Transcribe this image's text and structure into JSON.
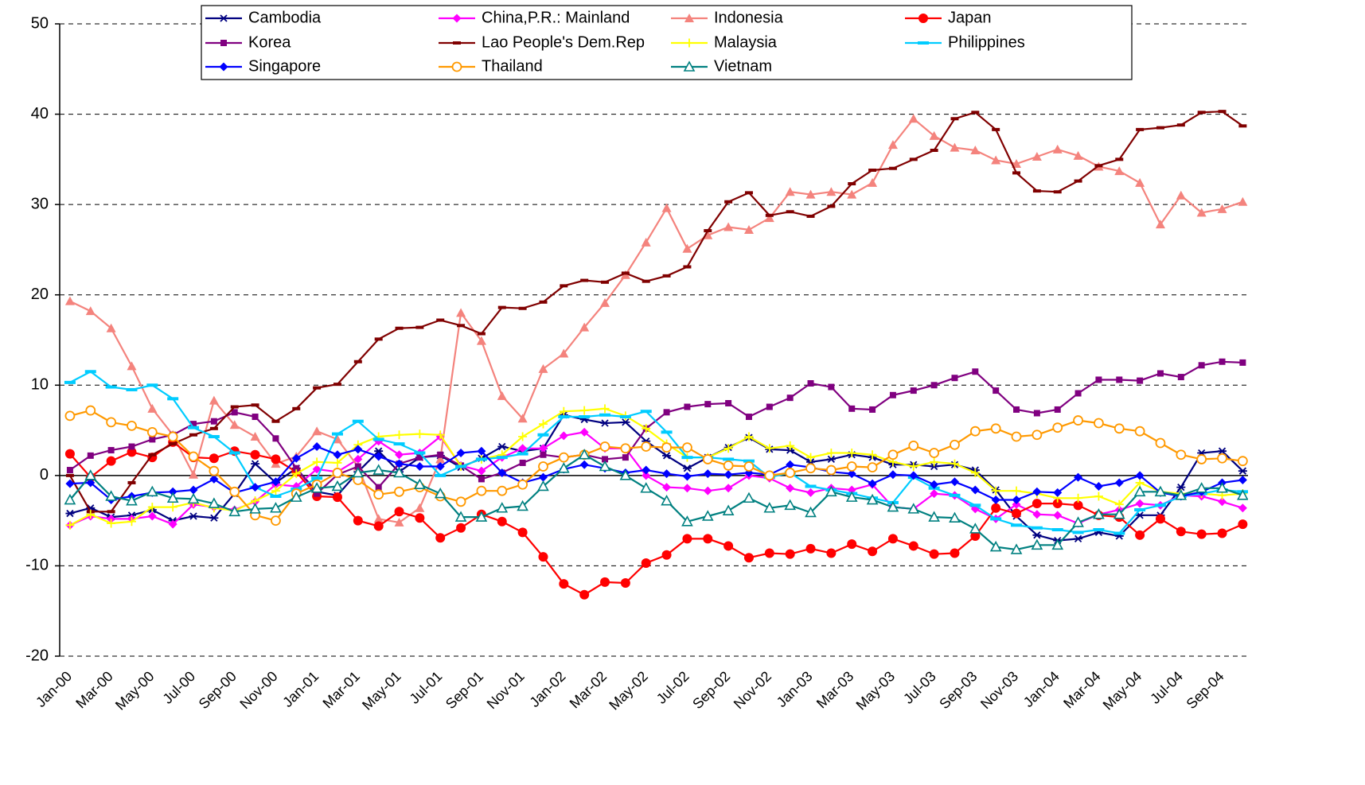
{
  "chart_data": {
    "type": "line",
    "categories": [
      "Jan-00",
      null,
      "Mar-00",
      null,
      "May-00",
      null,
      "Jul-00",
      null,
      "Sep-00",
      null,
      "Nov-00",
      null,
      "Jan-01",
      null,
      "Mar-01",
      null,
      "May-01",
      null,
      "Jul-01",
      null,
      "Sep-01",
      null,
      "Nov-01",
      null,
      "Jan-02",
      null,
      "Mar-02",
      null,
      "May-02",
      null,
      "Jul-02",
      null,
      "Sep-02",
      null,
      "Nov-02",
      null,
      "Jan-03",
      null,
      "Mar-03",
      null,
      "May-03",
      null,
      "Jul-03",
      null,
      "Sep-03",
      null,
      "Nov-03",
      null,
      "Jan-04",
      null,
      "Mar-04",
      null,
      "May-04",
      null,
      "Jul-04",
      null,
      "Sep-04",
      null
    ],
    "ylim": [
      -20,
      50
    ],
    "yticks": [
      -20,
      -10,
      0,
      10,
      20,
      30,
      40,
      50
    ],
    "grid": true,
    "legend": "top",
    "series": [
      {
        "name": "Cambodia",
        "color": "#000080",
        "marker": "asterisk",
        "values": [
          -4.2,
          -3.6,
          -4.6,
          -4.4,
          -3.8,
          -5.0,
          -4.5,
          -4.7,
          -2.0,
          1.3,
          -0.8,
          0.8,
          -1.8,
          -2.2,
          0.4,
          2.7,
          0.4,
          2.0,
          2.2,
          0.9,
          1.9,
          3.2,
          2.7,
          3.0,
          6.7,
          6.2,
          5.8,
          5.9,
          3.8,
          2.2,
          0.8,
          2.0,
          3.1,
          4.2,
          2.9,
          2.8,
          1.5,
          1.8,
          2.3,
          2.0,
          1.2,
          1.2,
          1.0,
          1.2,
          0.6,
          -1.6,
          -4.5,
          -6.6,
          -7.2,
          -7.0,
          -6.3,
          -6.7,
          -4.4,
          -4.4,
          -1.3,
          2.5,
          2.7,
          0.5
        ]
      },
      {
        "name": "China,P.R.: Mainland",
        "color": "#ff00ff",
        "marker": "diamond",
        "values": [
          -5.5,
          -4.5,
          -4.8,
          -4.8,
          -4.5,
          -5.4,
          -3.2,
          -3.5,
          -3.8,
          -2.9,
          -1.0,
          -1.2,
          0.7,
          0.4,
          1.8,
          3.8,
          2.3,
          2.5,
          4.3,
          1.1,
          0.5,
          2.0,
          3.0,
          3.0,
          4.4,
          4.8,
          3.0,
          3.0,
          0.0,
          -1.3,
          -1.4,
          -1.7,
          -1.4,
          0.0,
          -0.3,
          -1.4,
          -1.9,
          -1.4,
          -1.6,
          -1.0,
          -3.5,
          -3.7,
          -2.0,
          -2.2,
          -3.7,
          -4.8,
          -3.2,
          -4.3,
          -4.4,
          -5.3,
          -4.3,
          -3.8,
          -3.1,
          -3.3,
          -2.2,
          -2.3,
          -2.9,
          -3.6
        ]
      },
      {
        "name": "Indonesia",
        "color": "#f4837d",
        "marker": "triangle",
        "values": [
          19.3,
          18.2,
          16.3,
          12.1,
          7.4,
          4.5,
          0.1,
          8.3,
          5.6,
          4.3,
          1.3,
          2.1,
          4.9,
          4.0,
          1.0,
          -4.8,
          -5.2,
          -3.6,
          1.8,
          18.0,
          14.9,
          8.8,
          6.3,
          11.8,
          13.5,
          16.4,
          19.1,
          22.2,
          25.8,
          29.6,
          25.1,
          26.6,
          27.5,
          27.2,
          28.5,
          31.4,
          31.1,
          31.4,
          31.1,
          32.4,
          36.6,
          39.5,
          37.6,
          36.3,
          36.0,
          34.9,
          34.5,
          35.3,
          36.1,
          35.4,
          34.2,
          33.7,
          32.4,
          27.8,
          31.0,
          29.1,
          29.5,
          30.3
        ]
      },
      {
        "name": "Japan",
        "color": "#ff0000",
        "marker": "circle",
        "values": [
          2.4,
          -0.2,
          1.6,
          2.6,
          2.0,
          3.7,
          2.0,
          1.9,
          2.7,
          2.3,
          1.8,
          0.4,
          -2.3,
          -2.4,
          -5.0,
          -5.6,
          -4.0,
          -4.7,
          -6.9,
          -5.8,
          -4.3,
          -5.1,
          -6.3,
          -9.0,
          -12.0,
          -13.2,
          -11.8,
          -11.9,
          -9.7,
          -8.8,
          -7.0,
          -7.0,
          -7.8,
          -9.1,
          -8.6,
          -8.7,
          -8.1,
          -8.6,
          -7.6,
          -8.4,
          -7.0,
          -7.8,
          -8.7,
          -8.6,
          -6.7,
          -3.6,
          -4.2,
          -3.1,
          -3.1,
          -3.3,
          -4.4,
          -4.6,
          -6.6,
          -4.8,
          -6.2,
          -6.5,
          -6.4,
          -5.4
        ]
      },
      {
        "name": "Korea",
        "color": "#800080",
        "marker": "square",
        "values": [
          0.6,
          2.2,
          2.8,
          3.2,
          4.0,
          4.5,
          5.7,
          6.0,
          7.0,
          6.5,
          4.1,
          0.8,
          -2.0,
          0.1,
          1.0,
          -1.3,
          1.3,
          2.0,
          2.3,
          1.1,
          -0.4,
          0.3,
          1.4,
          2.3,
          2.0,
          2.3,
          1.8,
          2.0,
          5.2,
          7.0,
          7.6,
          7.9,
          8.0,
          6.5,
          7.6,
          8.6,
          10.2,
          9.8,
          7.4,
          7.3,
          8.9,
          9.4,
          10.0,
          10.8,
          11.5,
          9.4,
          7.3,
          6.9,
          7.3,
          9.1,
          10.6,
          10.6,
          10.5,
          11.3,
          10.9,
          12.2,
          12.6,
          12.5
        ]
      },
      {
        "name": "Lao People's Dem.Rep",
        "color": "#800000",
        "marker": "dash",
        "values": [
          0.0,
          -4.0,
          -4.0,
          -0.8,
          2.3,
          3.5,
          4.5,
          5.2,
          7.6,
          7.8,
          6.0,
          7.4,
          9.7,
          10.1,
          12.6,
          15.1,
          16.3,
          16.4,
          17.2,
          16.6,
          15.7,
          18.6,
          18.5,
          19.2,
          21.0,
          21.6,
          21.4,
          22.4,
          21.5,
          22.1,
          23.1,
          27.1,
          30.3,
          31.3,
          28.8,
          29.2,
          28.7,
          29.8,
          32.3,
          33.8,
          34.0,
          35.0,
          36.0,
          39.5,
          40.2,
          38.3,
          33.5,
          31.5,
          31.4,
          32.6,
          34.3,
          35.0,
          38.3,
          38.5,
          38.8,
          40.2,
          40.3,
          38.7
        ]
      },
      {
        "name": "Malaysia",
        "color": "#ffff00",
        "marker": "plus",
        "values": [
          -5.5,
          -4.3,
          -5.3,
          -5.1,
          -3.5,
          -3.5,
          -3.0,
          -3.6,
          -3.9,
          -2.8,
          -1.7,
          0.2,
          1.5,
          1.4,
          3.4,
          4.3,
          4.5,
          4.6,
          4.5,
          1.0,
          1.8,
          2.3,
          4.3,
          5.7,
          7.1,
          7.2,
          7.4,
          6.6,
          5.2,
          3.5,
          2.0,
          2.0,
          3.0,
          4.3,
          3.0,
          3.3,
          2.0,
          2.5,
          2.5,
          2.3,
          1.5,
          1.0,
          1.5,
          1.3,
          0.3,
          -1.7,
          -1.7,
          -2.0,
          -2.5,
          -2.5,
          -2.3,
          -3.2,
          -0.8,
          -1.8,
          -2.0,
          -2.0,
          -2.2,
          -2.0
        ]
      },
      {
        "name": "Philippines",
        "color": "#00ccff",
        "marker": "bar",
        "values": [
          10.3,
          11.5,
          9.8,
          9.5,
          10.0,
          8.5,
          5.3,
          4.3,
          2.5,
          -1.3,
          -2.3,
          -1.5,
          -0.3,
          4.6,
          6.0,
          4.0,
          3.5,
          2.5,
          0.0,
          1.0,
          1.8,
          2.0,
          2.4,
          4.5,
          6.5,
          6.5,
          6.7,
          6.5,
          7.1,
          4.8,
          2.0,
          2.0,
          1.8,
          1.6,
          -0.2,
          0.3,
          -1.2,
          -1.6,
          -2.0,
          -2.5,
          -3.0,
          -0.2,
          -1.4,
          -2.2,
          -3.3,
          -4.8,
          -5.5,
          -5.8,
          -6.0,
          -6.3,
          -6.0,
          -6.4,
          -3.8,
          -3.3,
          -2.3,
          -2.0,
          -1.6,
          -1.8
        ]
      },
      {
        "name": "Singapore",
        "color": "#0000ff",
        "marker": "diamond",
        "values": [
          -0.9,
          -0.8,
          -2.7,
          -2.3,
          -1.9,
          -1.8,
          -1.6,
          -0.4,
          -1.9,
          -1.3,
          -0.7,
          1.9,
          3.2,
          2.3,
          2.9,
          2.1,
          1.3,
          1.0,
          1.0,
          2.5,
          2.7,
          0.3,
          -0.8,
          -0.2,
          0.7,
          1.2,
          0.8,
          0.3,
          0.6,
          0.2,
          -0.1,
          0.2,
          0.1,
          0.3,
          0.1,
          1.2,
          0.9,
          0.4,
          0.2,
          -0.9,
          0.1,
          0.0,
          -1.0,
          -0.7,
          -1.6,
          -2.7,
          -2.7,
          -1.8,
          -1.9,
          -0.2,
          -1.2,
          -0.8,
          0.0,
          -1.9,
          -2.3,
          -1.8,
          -0.8,
          -0.5
        ]
      },
      {
        "name": "Thailand",
        "color": "#ff9900",
        "marker": "open-circle",
        "values": [
          6.6,
          7.2,
          5.9,
          5.5,
          4.8,
          4.3,
          2.1,
          0.5,
          -1.8,
          -4.4,
          -5.0,
          -2.0,
          -1.0,
          0.3,
          -0.5,
          -2.1,
          -1.8,
          -1.3,
          -2.3,
          -2.9,
          -1.7,
          -1.7,
          -1.0,
          1.0,
          2.0,
          2.3,
          3.2,
          3.0,
          3.2,
          3.1,
          3.1,
          1.8,
          1.1,
          1.0,
          0.0,
          0.3,
          0.8,
          0.6,
          1.0,
          0.9,
          2.3,
          3.3,
          2.5,
          3.4,
          4.9,
          5.2,
          4.3,
          4.5,
          5.3,
          6.1,
          5.8,
          5.2,
          4.9,
          3.6,
          2.3,
          1.8,
          1.9,
          1.6
        ]
      },
      {
        "name": "Vietnam",
        "color": "#008080",
        "marker": "open-triangle",
        "values": [
          -2.7,
          0.0,
          -2.3,
          -2.8,
          -1.8,
          -2.5,
          -2.6,
          -3.1,
          -4.0,
          -3.7,
          -3.6,
          -2.4,
          -1.4,
          -1.2,
          0.3,
          0.6,
          0.3,
          -1.0,
          -2.0,
          -4.6,
          -4.6,
          -3.6,
          -3.4,
          -1.2,
          0.8,
          2.3,
          1.0,
          0.0,
          -1.4,
          -2.8,
          -5.1,
          -4.5,
          -3.9,
          -2.5,
          -3.6,
          -3.3,
          -4.1,
          -1.8,
          -2.4,
          -2.7,
          -3.5,
          -3.7,
          -4.6,
          -4.7,
          -5.9,
          -7.9,
          -8.2,
          -7.7,
          -7.7,
          -5.2,
          -4.3,
          -4.3,
          -1.8,
          -1.8,
          -2.2,
          -1.4,
          -1.4,
          -2.2
        ]
      }
    ]
  }
}
